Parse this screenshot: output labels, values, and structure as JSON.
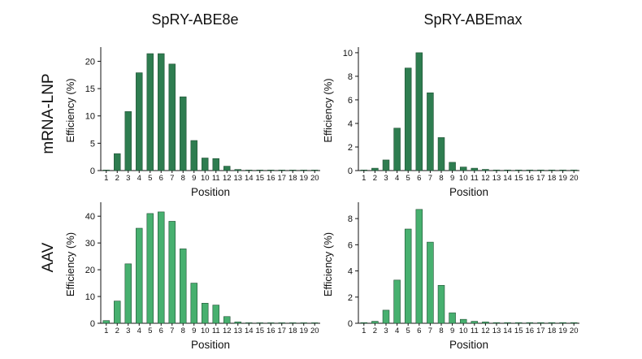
{
  "column_titles": [
    "SpRY-ABE8e",
    "SpRY-ABEmax"
  ],
  "row_labels": [
    "mRNA-LNP",
    "AAV"
  ],
  "chart_data": [
    {
      "type": "bar",
      "row": "mRNA-LNP",
      "column": "SpRY-ABE8e",
      "xlabel": "Position",
      "ylabel": "Efficiency (%)",
      "categories": [
        "1",
        "2",
        "3",
        "4",
        "5",
        "6",
        "7",
        "8",
        "9",
        "10",
        "11",
        "12",
        "13",
        "14",
        "15",
        "16",
        "17",
        "18",
        "19",
        "20"
      ],
      "values": [
        0.1,
        3.1,
        10.8,
        17.9,
        21.4,
        21.4,
        19.5,
        13.5,
        5.5,
        2.3,
        2.2,
        0.8,
        0.2,
        0.1,
        0.1,
        0.1,
        0.1,
        0.1,
        0.1,
        0.1
      ],
      "ylim": [
        0,
        22
      ],
      "yticks": [
        0,
        5,
        10,
        15,
        20
      ],
      "color": "#2e7d50"
    },
    {
      "type": "bar",
      "row": "mRNA-LNP",
      "column": "SpRY-ABEmax",
      "xlabel": "Position",
      "ylabel": "Efficiency (%)",
      "categories": [
        "1",
        "2",
        "3",
        "4",
        "5",
        "6",
        "7",
        "8",
        "9",
        "10",
        "11",
        "12",
        "13",
        "14",
        "15",
        "16",
        "17",
        "18",
        "19",
        "20"
      ],
      "values": [
        0.05,
        0.2,
        0.9,
        3.6,
        8.7,
        10.0,
        6.6,
        2.8,
        0.7,
        0.3,
        0.2,
        0.1,
        0.05,
        0.05,
        0.05,
        0.05,
        0.05,
        0.05,
        0.05,
        0.05
      ],
      "ylim": [
        0,
        10.2
      ],
      "yticks": [
        0,
        2,
        4,
        6,
        8,
        10
      ],
      "color": "#2e7d50"
    },
    {
      "type": "bar",
      "row": "AAV",
      "column": "SpRY-ABE8e",
      "xlabel": "Position",
      "ylabel": "Efficiency (%)",
      "categories": [
        "1",
        "2",
        "3",
        "4",
        "5",
        "6",
        "7",
        "8",
        "9",
        "10",
        "11",
        "12",
        "13",
        "14",
        "15",
        "16",
        "17",
        "18",
        "19",
        "20"
      ],
      "values": [
        1.0,
        8.3,
        22.2,
        35.5,
        41.0,
        41.6,
        38.1,
        27.8,
        15.0,
        7.5,
        6.8,
        2.5,
        0.5,
        0.2,
        0.1,
        0.1,
        0.1,
        0.1,
        0.1,
        0.1
      ],
      "ylim": [
        0,
        44
      ],
      "yticks": [
        0,
        10,
        20,
        30,
        40
      ],
      "color": "#47b06f"
    },
    {
      "type": "bar",
      "row": "AAV",
      "column": "SpRY-ABEmax",
      "xlabel": "Position",
      "ylabel": "Efficiency (%)",
      "categories": [
        "1",
        "2",
        "3",
        "4",
        "5",
        "6",
        "7",
        "8",
        "9",
        "10",
        "11",
        "12",
        "13",
        "14",
        "15",
        "16",
        "17",
        "18",
        "19",
        "20"
      ],
      "values": [
        0.05,
        0.15,
        1.0,
        3.3,
        7.2,
        8.7,
        6.2,
        2.9,
        0.8,
        0.3,
        0.15,
        0.1,
        0.05,
        0.05,
        0.05,
        0.05,
        0.05,
        0.05,
        0.05,
        0.05
      ],
      "ylim": [
        0,
        9
      ],
      "yticks": [
        0,
        2,
        4,
        6,
        8
      ],
      "color": "#47b06f"
    }
  ]
}
